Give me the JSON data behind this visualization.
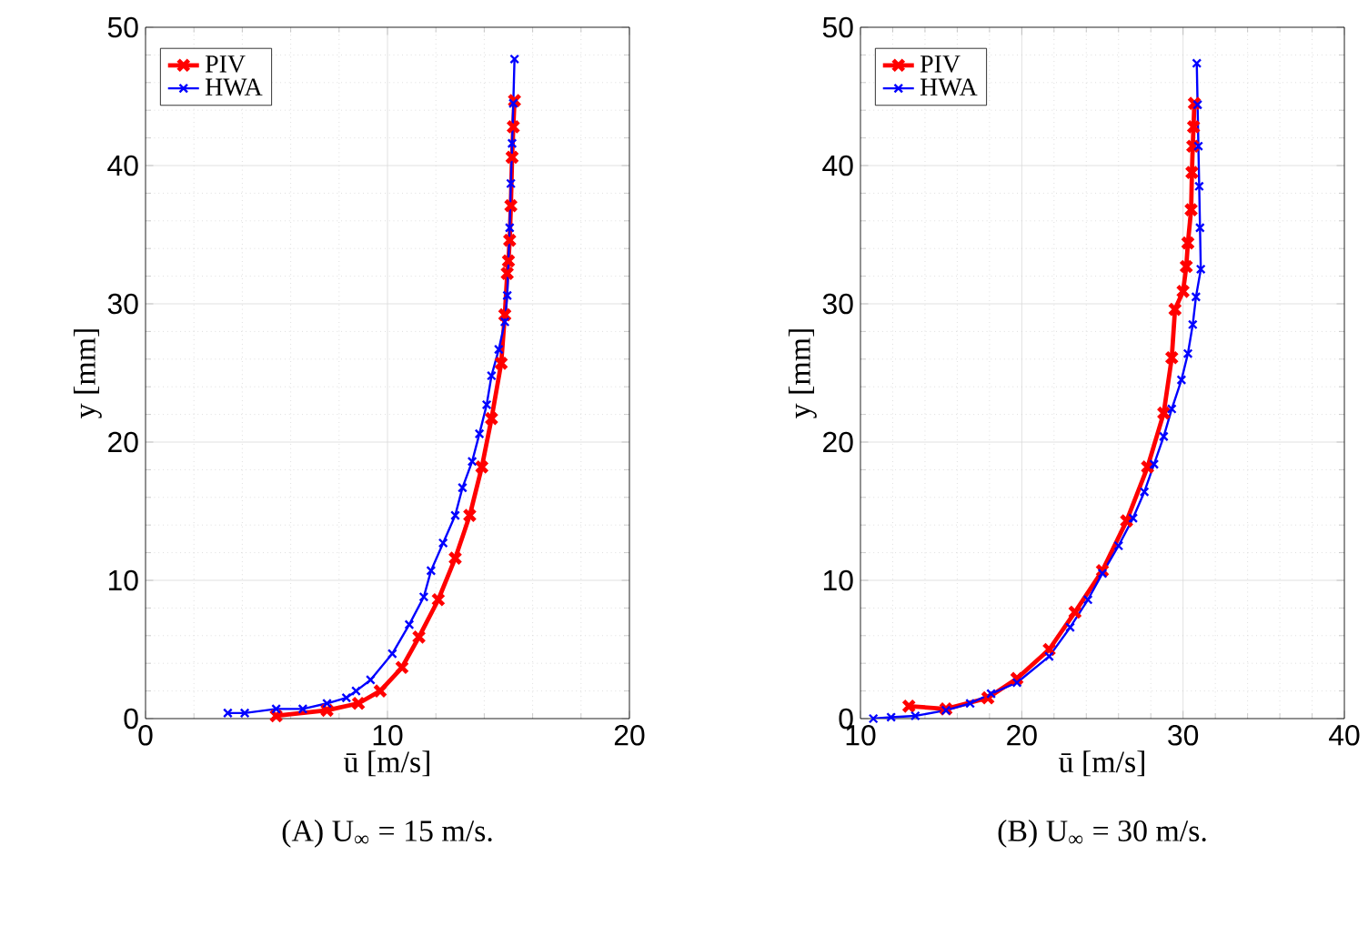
{
  "chart_data": [
    {
      "type": "line",
      "title": "(A) U$_{∞}$ = 15 m/s.",
      "xlabel": "ū [m/s]",
      "ylabel": "y [mm]",
      "xlim": [
        0,
        20
      ],
      "ylim": [
        0,
        50
      ],
      "xticks": [
        0,
        10,
        20
      ],
      "yticks": [
        0,
        10,
        20,
        30,
        40,
        50
      ],
      "grid": true,
      "legend": "top left",
      "marker": "cross",
      "line_style": "solid",
      "series": [
        {
          "name": "PIV",
          "color": "#ff0000",
          "x": [
            5.4,
            7.5,
            8.8,
            9.7,
            10.6,
            11.3,
            12.1,
            12.8,
            13.4,
            13.9,
            14.3,
            14.7,
            14.85,
            14.95,
            15.0,
            15.05,
            15.1,
            15.15,
            15.2,
            15.25
          ],
          "values": [
            0.2,
            0.6,
            1.1,
            2.0,
            3.7,
            5.9,
            8.6,
            11.6,
            14.7,
            18.2,
            21.7,
            25.7,
            29.2,
            32.2,
            33.1,
            34.6,
            37.1,
            40.6,
            42.8,
            44.7
          ]
        },
        {
          "name": "HWA",
          "color": "#0000ff",
          "x": [
            3.4,
            4.1,
            5.4,
            6.5,
            7.5,
            8.3,
            8.7,
            9.3,
            10.2,
            10.9,
            11.5,
            11.8,
            12.3,
            12.8,
            13.1,
            13.5,
            13.8,
            14.1,
            14.3,
            14.6,
            14.85,
            14.95,
            15.05,
            15.1,
            15.15,
            15.2,
            15.25
          ],
          "values": [
            0.4,
            0.4,
            0.7,
            0.7,
            1.1,
            1.5,
            2.0,
            2.8,
            4.7,
            6.8,
            8.8,
            10.7,
            12.7,
            14.7,
            16.7,
            18.6,
            20.6,
            22.7,
            24.8,
            26.7,
            28.7,
            30.6,
            35.5,
            38.7,
            41.6,
            44.5,
            47.7
          ]
        }
      ]
    },
    {
      "type": "line",
      "title": "(B) U$_{∞}$ = 30 m/s.",
      "xlabel": "ū [m/s]",
      "ylabel": "y [mm]",
      "xlim": [
        10,
        40
      ],
      "ylim": [
        0,
        50
      ],
      "xticks": [
        10,
        20,
        30,
        40
      ],
      "yticks": [
        0,
        10,
        20,
        30,
        40,
        50
      ],
      "grid": true,
      "legend": "top left",
      "marker": "cross",
      "line_style": "solid",
      "series": [
        {
          "name": "PIV",
          "color": "#ff0000",
          "x": [
            13.0,
            15.3,
            17.9,
            19.7,
            21.7,
            23.3,
            25.0,
            26.5,
            27.8,
            28.8,
            29.3,
            29.5,
            30.0,
            30.2,
            30.3,
            30.5,
            30.55,
            30.6,
            30.65,
            30.7
          ],
          "values": [
            0.9,
            0.7,
            1.5,
            2.9,
            5.0,
            7.7,
            10.7,
            14.3,
            18.2,
            22.1,
            26.1,
            29.6,
            30.9,
            32.7,
            34.4,
            36.8,
            39.5,
            41.4,
            42.8,
            44.5
          ]
        },
        {
          "name": "HWA",
          "color": "#0000ff",
          "x": [
            10.8,
            11.9,
            13.4,
            15.3,
            16.8,
            18.1,
            19.7,
            21.7,
            23.0,
            24.1,
            25.0,
            26.0,
            26.9,
            27.6,
            28.2,
            28.8,
            29.3,
            29.9,
            30.3,
            30.6,
            30.8,
            31.1,
            31.05,
            31.0,
            30.95,
            30.9,
            30.85
          ],
          "values": [
            0.0,
            0.1,
            0.2,
            0.6,
            1.1,
            1.8,
            2.6,
            4.5,
            6.6,
            8.6,
            10.5,
            12.5,
            14.5,
            16.4,
            18.4,
            20.4,
            22.4,
            24.5,
            26.4,
            28.5,
            30.5,
            32.5,
            35.5,
            38.5,
            41.4,
            44.4,
            47.4
          ]
        }
      ]
    }
  ]
}
